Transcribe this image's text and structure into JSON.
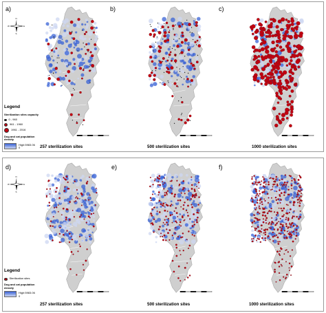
{
  "panels": [
    {
      "letter": "a)",
      "caption": "257  sterilization sites",
      "group": "top",
      "mode": "capacity",
      "sites": 257
    },
    {
      "letter": "b)",
      "caption": "500 sterilization sites",
      "group": "top",
      "mode": "capacity",
      "sites": 500
    },
    {
      "letter": "c)",
      "caption": "1000 sterilization sites",
      "group": "top",
      "mode": "capacity",
      "sites": 1000
    },
    {
      "letter": "d)",
      "caption": "257  sterilization sites",
      "group": "bottom",
      "mode": "density",
      "sites": 257
    },
    {
      "letter": "e)",
      "caption": "500 sterilization sites",
      "group": "bottom",
      "mode": "density",
      "sites": 500
    },
    {
      "letter": "f)",
      "caption": "1000 sterilization sites",
      "group": "bottom",
      "mode": "density",
      "sites": 1000
    }
  ],
  "legend_top": {
    "title": "Legend",
    "capacity_title": "Sterilization sites capacity",
    "capacity_classes": [
      "0 - 960",
      "961 - 1960",
      "1961 - 2016"
    ],
    "density_title": "Dog and cat population density",
    "density_high": "High:5983.06",
    "density_low": "0"
  },
  "legend_bottom": {
    "title": "Legend",
    "sites_label": "Sterilization sites",
    "density_title": "Dog and cat population density",
    "density_high": "High:5983.06",
    "density_low": "0"
  },
  "north_arrow": {
    "n": "N",
    "s": "S",
    "e": "E",
    "w": "W"
  },
  "colors": {
    "region_fill": "#cfcfcf",
    "region_stroke": "#a8a8a8",
    "density_blue": "#3a63d6",
    "density_light": "#cdd7f2",
    "site_red": "#c20010"
  }
}
